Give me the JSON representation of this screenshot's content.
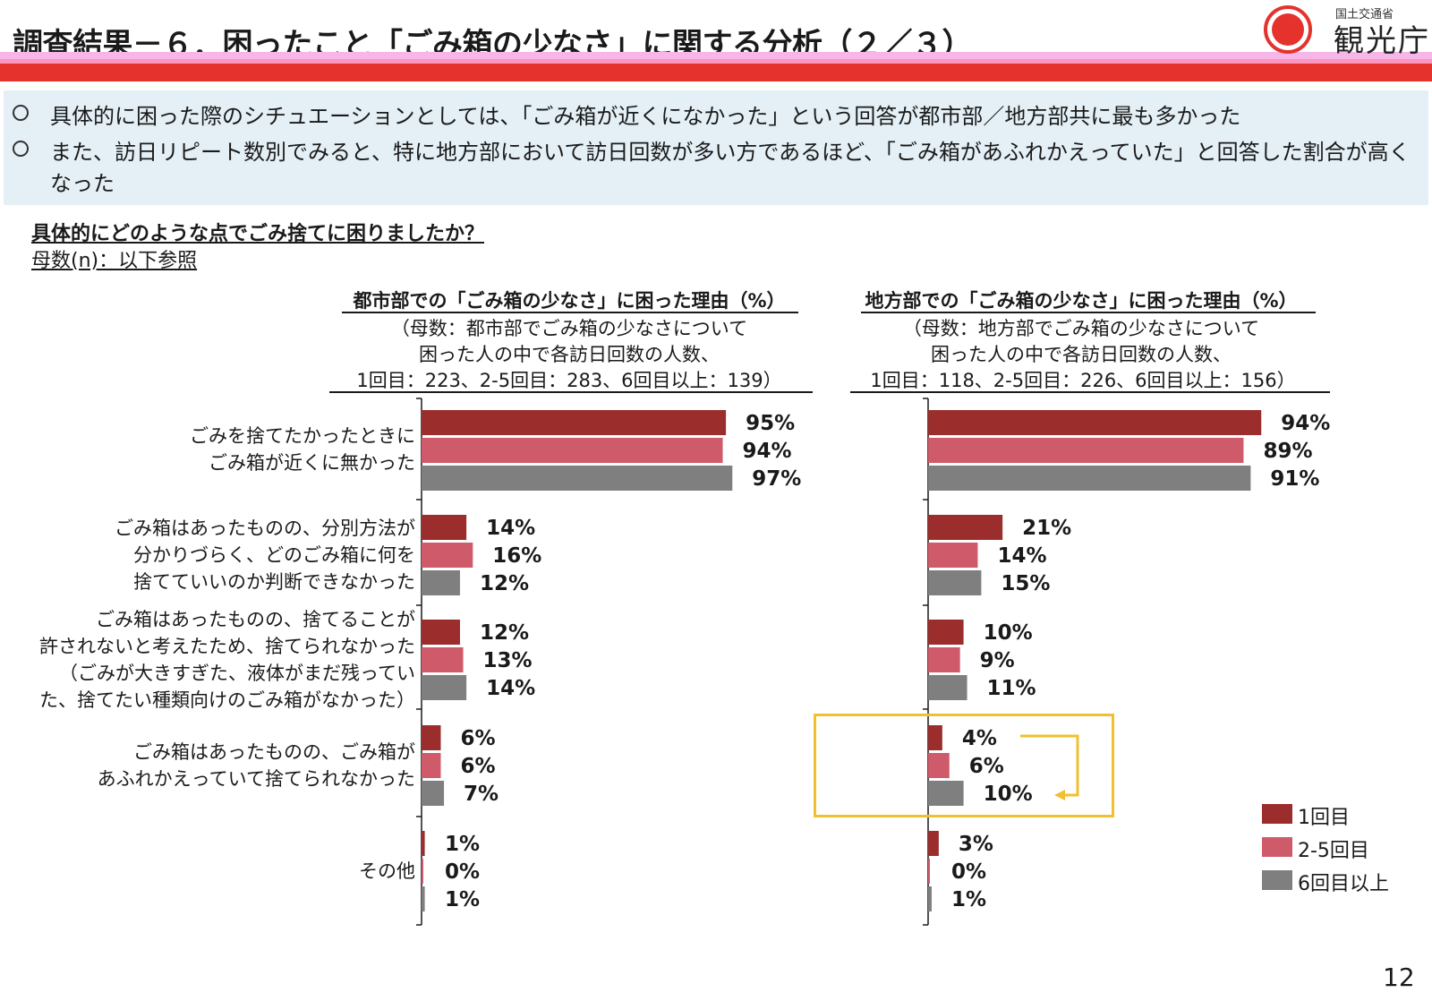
{
  "header": {
    "title": "調査結果－６．困ったこと「ごみ箱の少なさ」に関する分析（２／３）",
    "logo_ministry": "国土交通省",
    "logo_agency": "観光庁"
  },
  "summary": [
    "具体的に困った際のシチュエーションとしては、「ごみ箱が近くになかった」という回答が都市部／地方部共に最も多かった",
    "また、訪日リピート数別でみると、特に地方部において訪日回数が多い方であるほど、「ごみ箱があふれかえっていた」と回答した割合が高く",
    "なった"
  ],
  "question": "具体的にどのような点でごみ捨てに困りましたか？",
  "base_note": "母数(n)：以下参照",
  "panels": {
    "urban": {
      "title": "都市部での「ごみ箱の少なさ」に困った理由（%）",
      "sub1": "（母数：都市部でごみ箱の少なさについて",
      "sub2": "困った人の中で各訪日回数の人数、",
      "sub3": "1回目：223、2-5回目：283、6回目以上：139）"
    },
    "rural": {
      "title": "地方部での「ごみ箱の少なさ」に困った理由（%）",
      "sub1": "（母数：地方部でごみ箱の少なさについて",
      "sub2": "困った人の中で各訪日回数の人数、",
      "sub3": "1回目：118、2-5回目：226、6回目以上：156）"
    }
  },
  "categories": [
    [
      "ごみを捨てたかったときに",
      "ごみ箱が近くに無かった"
    ],
    [
      "ごみ箱はあったものの、分別方法が",
      "分かりづらく、どのごみ箱に何を",
      "捨てていいのか判断できなかった"
    ],
    [
      "ごみ箱はあったものの、捨てることが",
      "許されないと考えたため、捨てられなかった",
      "（ごみが大きすぎた、液体がまだ残ってい",
      "た、捨てたい種類向けのごみ箱がなかった）"
    ],
    [
      "ごみ箱はあったものの、ごみ箱が",
      "あふれかえっていて捨てられなかった"
    ],
    [
      "その他"
    ]
  ],
  "legend": [
    "1回目",
    "2-5回目",
    "6回目以上"
  ],
  "colors": {
    "first": "#9b2d2d",
    "mid": "#cf5a6a",
    "repeat": "#7f7f7f",
    "highlight": "#f0c030",
    "header_red": "#e5322d",
    "header_pink": "#f6b6e8",
    "summary_bg": "#e4f0f6"
  },
  "chart_data": [
    {
      "type": "bar",
      "orientation": "horizontal",
      "title": "都市部での「ごみ箱の少なさ」に困った理由（%）",
      "categories": [
        "ごみを捨てたかったときにごみ箱が近くに無かった",
        "ごみ箱はあったものの、分別方法が分かりづらく、どのごみ箱に何を捨てていいのか判断できなかった",
        "ごみ箱はあったものの、捨てることが許されないと考えたため、捨てられなかった（ごみが大きすぎた、液体がまだ残っていた、捨てたい種類向けのごみ箱がなかった）",
        "ごみ箱はあったものの、ごみ箱があふれかえっていて捨てられなかった",
        "その他"
      ],
      "series": [
        {
          "name": "1回目",
          "values": [
            95,
            14,
            12,
            6,
            1
          ]
        },
        {
          "name": "2-5回目",
          "values": [
            94,
            16,
            13,
            6,
            0
          ]
        },
        {
          "name": "6回目以上",
          "values": [
            97,
            12,
            14,
            7,
            1
          ]
        }
      ],
      "unit": "%",
      "xlim": [
        0,
        100
      ]
    },
    {
      "type": "bar",
      "orientation": "horizontal",
      "title": "地方部での「ごみ箱の少なさ」に困った理由（%）",
      "categories": [
        "ごみを捨てたかったときにごみ箱が近くに無かった",
        "ごみ箱はあったものの、分別方法が分かりづらく、どのごみ箱に何を捨てていいのか判断できなかった",
        "ごみ箱はあったものの、捨てることが許されないと考えたため、捨てられなかった（ごみが大きすぎた、液体がまだ残っていた、捨てたい種類向けのごみ箱がなかった）",
        "ごみ箱はあったものの、ごみ箱があふれかえっていて捨てられなかった",
        "その他"
      ],
      "series": [
        {
          "name": "1回目",
          "values": [
            94,
            21,
            10,
            4,
            3
          ]
        },
        {
          "name": "2-5回目",
          "values": [
            89,
            14,
            9,
            6,
            0
          ]
        },
        {
          "name": "6回目以上",
          "values": [
            91,
            15,
            11,
            10,
            1
          ]
        }
      ],
      "unit": "%",
      "xlim": [
        0,
        100
      ]
    }
  ],
  "page_number": "12"
}
